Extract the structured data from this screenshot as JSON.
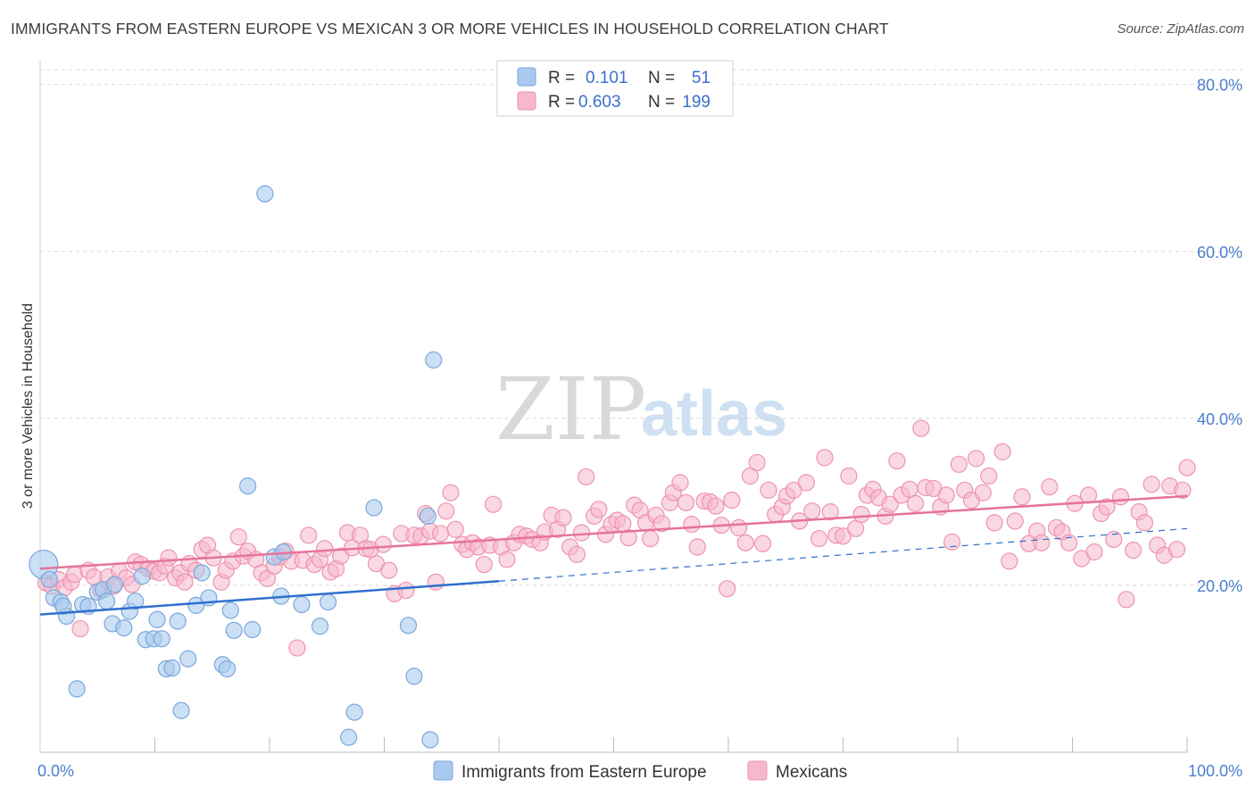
{
  "title": "IMMIGRANTS FROM EASTERN EUROPE VS MEXICAN 3 OR MORE VEHICLES IN HOUSEHOLD CORRELATION CHART",
  "source": "Source: ZipAtlas.com",
  "watermark": {
    "zip": "ZIP",
    "atlas": "atlas"
  },
  "colors": {
    "blue_fill": "#a9c9ef",
    "blue_stroke": "#7aa7dc",
    "blue_line": "#2f6fce",
    "pink_fill": "#f6b8ca",
    "pink_stroke": "#ee93b0",
    "pink_line": "#e5739b",
    "grid": "#d8d8d8",
    "tick_label": "#4a7fd0"
  },
  "legend": {
    "row1": {
      "r_label": "R =",
      "r_value": "0.101",
      "n_label": "N =",
      "n_value": "51"
    },
    "row2": {
      "r_label": "R =",
      "r_value": "0.603",
      "n_label": "N =",
      "n_value": "199"
    }
  },
  "chart_data": {
    "type": "scatter",
    "ylabel": "3 or more Vehicles in Household",
    "xlabel": "",
    "xlim": [
      0,
      100
    ],
    "ylim": [
      0,
      82
    ],
    "x_tick_labels": [
      "0.0%",
      "100.0%"
    ],
    "y_tick_values": [
      20,
      40,
      60,
      80
    ],
    "y_tick_labels": [
      "20.0%",
      "40.0%",
      "60.0%",
      "80.0%"
    ],
    "grid": true,
    "legend_position": "top-center",
    "series": [
      {
        "name": "Immigrants from Eastern Europe",
        "R": 0.101,
        "N": 51,
        "trend_solid": [
          [
            0,
            16.5
          ],
          [
            40,
            20.5
          ]
        ],
        "trend_dashed": [
          [
            40,
            20.5
          ],
          [
            100,
            26.8
          ]
        ],
        "points": [
          [
            0.3,
            22.5
          ],
          [
            0.8,
            20.7
          ],
          [
            1.2,
            18.5
          ],
          [
            1.8,
            18.0
          ],
          [
            2.3,
            16.3
          ],
          [
            3.2,
            7.6
          ],
          [
            3.7,
            17.7
          ],
          [
            4.2,
            17.5
          ],
          [
            5.0,
            19.2
          ],
          [
            5.5,
            19.5
          ],
          [
            5.8,
            18.1
          ],
          [
            6.3,
            15.4
          ],
          [
            6.5,
            20.1
          ],
          [
            7.3,
            14.9
          ],
          [
            7.8,
            16.9
          ],
          [
            8.3,
            18.1
          ],
          [
            8.9,
            21.1
          ],
          [
            9.2,
            13.5
          ],
          [
            9.9,
            13.6
          ],
          [
            10.2,
            15.9
          ],
          [
            10.6,
            13.6
          ],
          [
            11.0,
            10.0
          ],
          [
            11.5,
            10.1
          ],
          [
            12.0,
            15.7
          ],
          [
            12.3,
            5.0
          ],
          [
            12.9,
            11.2
          ],
          [
            13.6,
            17.6
          ],
          [
            14.1,
            21.5
          ],
          [
            14.7,
            18.5
          ],
          [
            15.9,
            10.5
          ],
          [
            16.3,
            10.0
          ],
          [
            16.6,
            17.0
          ],
          [
            16.9,
            14.6
          ],
          [
            18.1,
            31.9
          ],
          [
            18.5,
            14.7
          ],
          [
            19.6,
            66.9
          ],
          [
            20.4,
            23.4
          ],
          [
            21.0,
            18.7
          ],
          [
            21.2,
            24.0
          ],
          [
            22.8,
            17.7
          ],
          [
            24.4,
            15.1
          ],
          [
            25.1,
            18.0
          ],
          [
            26.9,
            1.8
          ],
          [
            27.4,
            4.8
          ],
          [
            29.1,
            29.3
          ],
          [
            32.1,
            15.2
          ],
          [
            32.6,
            9.1
          ],
          [
            33.8,
            28.3
          ],
          [
            34.0,
            1.5
          ],
          [
            34.3,
            47.0
          ],
          [
            2.0,
            17.5
          ]
        ]
      },
      {
        "name": "Mexicans",
        "R": 0.603,
        "N": 199,
        "trend_solid": [
          [
            0,
            22.0
          ],
          [
            100,
            30.7
          ]
        ],
        "points": [
          [
            0.5,
            20.3
          ],
          [
            1.0,
            19.9
          ],
          [
            1.6,
            20.7
          ],
          [
            2.1,
            19.7
          ],
          [
            2.7,
            20.4
          ],
          [
            3.0,
            21.3
          ],
          [
            3.5,
            14.8
          ],
          [
            4.2,
            21.8
          ],
          [
            4.7,
            21.0
          ],
          [
            5.3,
            19.4
          ],
          [
            5.9,
            21.0
          ],
          [
            6.4,
            19.9
          ],
          [
            6.9,
            21.7
          ],
          [
            7.5,
            20.9
          ],
          [
            8.0,
            20.1
          ],
          [
            8.3,
            22.8
          ],
          [
            8.8,
            22.5
          ],
          [
            9.4,
            22.0
          ],
          [
            9.9,
            21.7
          ],
          [
            10.4,
            21.5
          ],
          [
            10.9,
            22.3
          ],
          [
            11.2,
            23.3
          ],
          [
            11.8,
            20.9
          ],
          [
            12.2,
            21.5
          ],
          [
            12.6,
            20.4
          ],
          [
            13.0,
            22.6
          ],
          [
            13.6,
            21.8
          ],
          [
            14.1,
            24.3
          ],
          [
            14.6,
            24.8
          ],
          [
            15.1,
            23.3
          ],
          [
            15.8,
            20.4
          ],
          [
            16.2,
            21.8
          ],
          [
            16.8,
            22.9
          ],
          [
            17.3,
            25.8
          ],
          [
            17.7,
            23.5
          ],
          [
            18.1,
            24.1
          ],
          [
            18.8,
            23.1
          ],
          [
            19.3,
            21.5
          ],
          [
            19.8,
            20.8
          ],
          [
            20.4,
            22.3
          ],
          [
            20.9,
            23.4
          ],
          [
            21.4,
            24.1
          ],
          [
            21.9,
            22.9
          ],
          [
            22.4,
            12.5
          ],
          [
            22.9,
            23.0
          ],
          [
            23.4,
            26.0
          ],
          [
            23.9,
            22.5
          ],
          [
            24.4,
            23.1
          ],
          [
            24.8,
            24.4
          ],
          [
            25.3,
            21.6
          ],
          [
            25.8,
            22.0
          ],
          [
            26.2,
            23.5
          ],
          [
            26.8,
            26.3
          ],
          [
            27.2,
            24.5
          ],
          [
            27.9,
            26.0
          ],
          [
            28.4,
            24.4
          ],
          [
            28.8,
            24.3
          ],
          [
            29.3,
            22.6
          ],
          [
            29.9,
            24.9
          ],
          [
            30.4,
            21.8
          ],
          [
            30.9,
            19.0
          ],
          [
            31.5,
            26.2
          ],
          [
            31.9,
            19.4
          ],
          [
            32.6,
            26.0
          ],
          [
            33.2,
            25.9
          ],
          [
            33.6,
            28.6
          ],
          [
            34.0,
            26.5
          ],
          [
            34.5,
            20.4
          ],
          [
            34.9,
            26.2
          ],
          [
            35.4,
            28.9
          ],
          [
            35.8,
            31.1
          ],
          [
            36.2,
            26.7
          ],
          [
            36.8,
            24.9
          ],
          [
            37.2,
            24.3
          ],
          [
            37.7,
            25.1
          ],
          [
            38.2,
            24.6
          ],
          [
            38.7,
            22.5
          ],
          [
            39.2,
            24.8
          ],
          [
            39.5,
            29.7
          ],
          [
            40.2,
            24.6
          ],
          [
            40.7,
            23.1
          ],
          [
            41.3,
            25.1
          ],
          [
            41.8,
            26.1
          ],
          [
            42.4,
            25.9
          ],
          [
            42.9,
            25.5
          ],
          [
            43.6,
            25.1
          ],
          [
            44.0,
            26.4
          ],
          [
            44.6,
            28.4
          ],
          [
            45.1,
            26.7
          ],
          [
            45.6,
            28.1
          ],
          [
            46.2,
            24.6
          ],
          [
            46.8,
            23.7
          ],
          [
            47.2,
            26.3
          ],
          [
            47.6,
            33.0
          ],
          [
            48.3,
            28.3
          ],
          [
            48.7,
            29.1
          ],
          [
            49.3,
            26.1
          ],
          [
            49.8,
            27.3
          ],
          [
            50.3,
            27.8
          ],
          [
            50.8,
            27.4
          ],
          [
            51.3,
            25.7
          ],
          [
            51.8,
            29.6
          ],
          [
            52.3,
            29.0
          ],
          [
            52.8,
            27.5
          ],
          [
            53.2,
            25.6
          ],
          [
            53.7,
            28.4
          ],
          [
            54.2,
            27.4
          ],
          [
            54.9,
            29.9
          ],
          [
            55.2,
            31.1
          ],
          [
            55.8,
            32.3
          ],
          [
            56.3,
            29.9
          ],
          [
            56.8,
            27.3
          ],
          [
            57.3,
            24.6
          ],
          [
            57.9,
            30.1
          ],
          [
            58.4,
            30.0
          ],
          [
            58.9,
            29.5
          ],
          [
            59.4,
            27.2
          ],
          [
            59.9,
            19.6
          ],
          [
            60.3,
            30.2
          ],
          [
            60.9,
            26.9
          ],
          [
            61.5,
            25.1
          ],
          [
            61.9,
            33.1
          ],
          [
            62.5,
            34.7
          ],
          [
            63.0,
            25.0
          ],
          [
            63.5,
            31.4
          ],
          [
            64.1,
            28.5
          ],
          [
            64.7,
            29.4
          ],
          [
            65.1,
            30.7
          ],
          [
            65.7,
            31.4
          ],
          [
            66.2,
            27.7
          ],
          [
            66.8,
            32.3
          ],
          [
            67.3,
            28.9
          ],
          [
            67.9,
            25.6
          ],
          [
            68.4,
            35.3
          ],
          [
            68.9,
            28.8
          ],
          [
            69.4,
            26.0
          ],
          [
            70.0,
            25.9
          ],
          [
            70.5,
            33.1
          ],
          [
            71.1,
            26.8
          ],
          [
            71.6,
            28.5
          ],
          [
            72.1,
            30.8
          ],
          [
            72.6,
            31.5
          ],
          [
            73.1,
            30.5
          ],
          [
            73.7,
            28.3
          ],
          [
            74.1,
            29.7
          ],
          [
            74.7,
            34.9
          ],
          [
            75.1,
            30.8
          ],
          [
            75.8,
            31.5
          ],
          [
            76.3,
            29.8
          ],
          [
            76.8,
            38.8
          ],
          [
            77.2,
            31.7
          ],
          [
            77.9,
            31.6
          ],
          [
            78.5,
            29.4
          ],
          [
            79.0,
            30.8
          ],
          [
            79.5,
            25.2
          ],
          [
            80.1,
            34.5
          ],
          [
            80.6,
            31.4
          ],
          [
            81.2,
            30.2
          ],
          [
            81.6,
            35.2
          ],
          [
            82.2,
            31.1
          ],
          [
            82.7,
            33.1
          ],
          [
            83.2,
            27.5
          ],
          [
            83.9,
            36.0
          ],
          [
            84.5,
            22.9
          ],
          [
            85.0,
            27.7
          ],
          [
            85.6,
            30.6
          ],
          [
            86.2,
            25.0
          ],
          [
            86.9,
            26.5
          ],
          [
            87.3,
            25.1
          ],
          [
            88.0,
            31.8
          ],
          [
            88.6,
            26.9
          ],
          [
            89.1,
            26.4
          ],
          [
            89.7,
            25.1
          ],
          [
            90.2,
            29.8
          ],
          [
            90.8,
            23.2
          ],
          [
            91.4,
            30.8
          ],
          [
            91.9,
            24.0
          ],
          [
            92.5,
            28.6
          ],
          [
            93.0,
            29.4
          ],
          [
            93.6,
            25.5
          ],
          [
            94.2,
            30.6
          ],
          [
            94.7,
            18.3
          ],
          [
            95.3,
            24.2
          ],
          [
            95.8,
            28.8
          ],
          [
            96.3,
            27.5
          ],
          [
            96.9,
            32.1
          ],
          [
            97.4,
            24.8
          ],
          [
            98.0,
            23.6
          ],
          [
            98.5,
            31.9
          ],
          [
            99.1,
            24.3
          ],
          [
            99.6,
            31.4
          ],
          [
            100.0,
            34.1
          ]
        ]
      }
    ]
  },
  "bottom_legend": [
    {
      "label": "Immigrants from Eastern Europe"
    },
    {
      "label": "Mexicans"
    }
  ]
}
